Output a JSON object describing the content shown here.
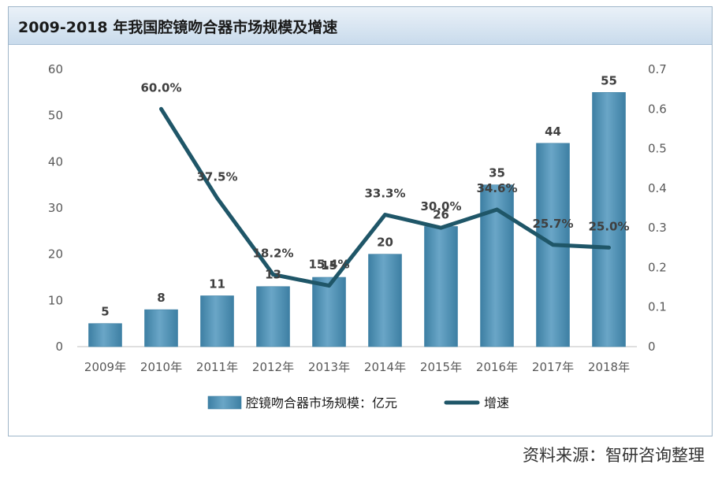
{
  "title": "2009-2018 年我国腔镜吻合器市场规模及增速",
  "source": "资料来源：智研咨询整理",
  "colors": {
    "bar": "#6aa6c7",
    "bar_dark": "#3d7fa3",
    "line": "#1f5668"
  },
  "chart_data": {
    "type": "bar+line",
    "categories": [
      "2009年",
      "2010年",
      "2011年",
      "2012年",
      "2013年",
      "2014年",
      "2015年",
      "2016年",
      "2017年",
      "2018年"
    ],
    "series": [
      {
        "name": "腔镜吻合器市场规模：亿元",
        "type": "bar",
        "axis": "left",
        "values": [
          5,
          8,
          11,
          13,
          15,
          20,
          26,
          35,
          44,
          55
        ],
        "labels": [
          "5",
          "8",
          "11",
          "13",
          "15",
          "20",
          "26",
          "35",
          "44",
          "55"
        ]
      },
      {
        "name": "增速",
        "type": "line",
        "axis": "right",
        "values": [
          null,
          0.6,
          0.375,
          0.182,
          0.154,
          0.333,
          0.3,
          0.346,
          0.257,
          0.25
        ],
        "labels": [
          "",
          "60.0%",
          "37.5%",
          "18.2%",
          "15.4%",
          "33.3%",
          "30.0%",
          "34.6%",
          "25.7%",
          "25.0%"
        ]
      }
    ],
    "y_left": {
      "min": 0,
      "max": 60,
      "ticks": [
        "0",
        "10",
        "20",
        "30",
        "40",
        "50",
        "60"
      ]
    },
    "y_right": {
      "min": 0,
      "max": 0.7,
      "ticks": [
        "0",
        "0.1",
        "0.2",
        "0.3",
        "0.4",
        "0.5",
        "0.6",
        "0.7"
      ]
    },
    "grid": false,
    "legend": "bottom"
  }
}
